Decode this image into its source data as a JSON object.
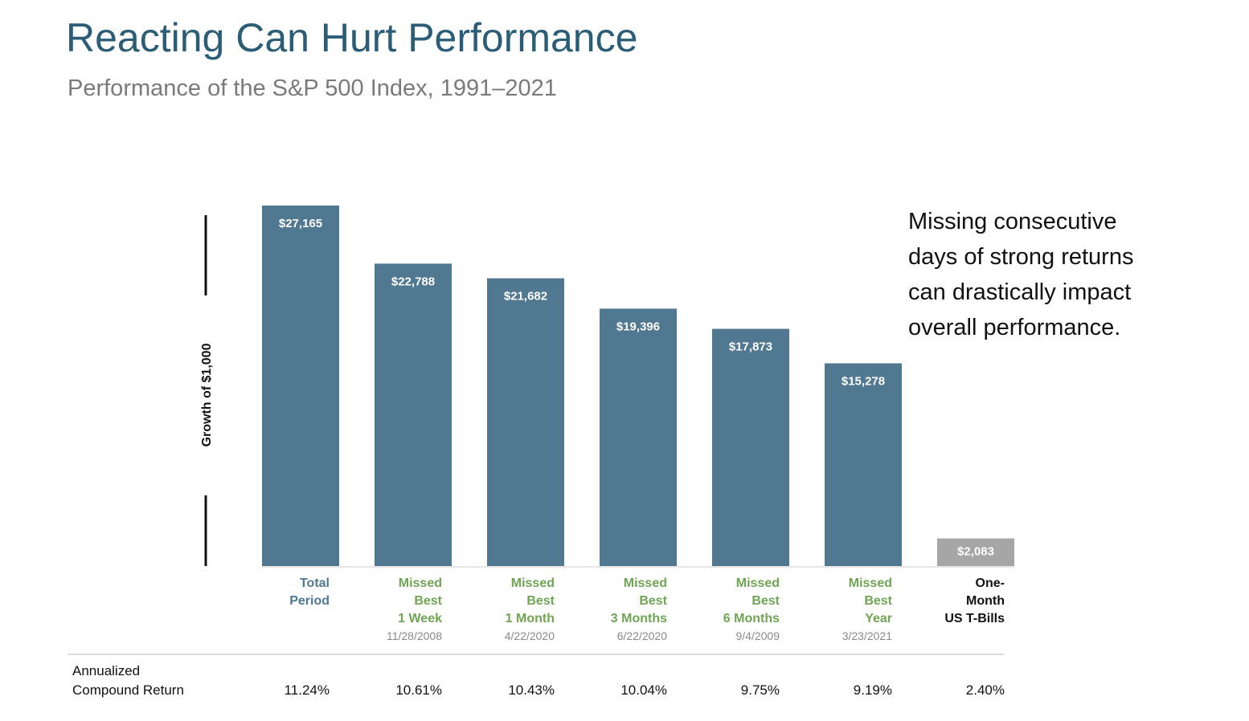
{
  "title": "Reacting Can Hurt Performance",
  "subtitle": "Performance of the S&P 500 Index, 1991–2021",
  "note_lines": [
    "Missing consecutive",
    "days of strong returns",
    "can drastically impact",
    "overall performance."
  ],
  "return_row_label": [
    "Annualized",
    "Compound Return"
  ],
  "colors": {
    "bar": "#507891",
    "tbill_bar": "#a6a6a6",
    "total_label": "#4f7893",
    "missed_label": "#6fa554",
    "tbill_label": "#111111",
    "title": "#2c5d77"
  },
  "chart_data": {
    "type": "bar",
    "ylabel": "Growth of $1,000",
    "ylim": [
      0,
      27165
    ],
    "grid": false,
    "categories": [
      {
        "lines": [
          "Total",
          "Period"
        ],
        "date": "",
        "group": "total"
      },
      {
        "lines": [
          "Missed",
          "Best",
          "1 Week"
        ],
        "date": "11/28/2008",
        "group": "missed"
      },
      {
        "lines": [
          "Missed",
          "Best",
          "1 Month"
        ],
        "date": "4/22/2020",
        "group": "missed"
      },
      {
        "lines": [
          "Missed",
          "Best",
          "3 Months"
        ],
        "date": "6/22/2020",
        "group": "missed"
      },
      {
        "lines": [
          "Missed",
          "Best",
          "6 Months"
        ],
        "date": "9/4/2009",
        "group": "missed"
      },
      {
        "lines": [
          "Missed",
          "Best",
          "Year"
        ],
        "date": "3/23/2021",
        "group": "missed"
      },
      {
        "lines": [
          "One-",
          "Month",
          "US T-Bills"
        ],
        "date": "",
        "group": "tbill"
      }
    ],
    "values": [
      27165,
      22788,
      21682,
      19396,
      17873,
      15278,
      2083
    ],
    "value_labels": [
      "$27,165",
      "$22,788",
      "$21,682",
      "$19,396",
      "$17,873",
      "$15,278",
      "$2,083"
    ],
    "annualized_returns": [
      "11.24%",
      "10.61%",
      "10.43%",
      "10.04%",
      "9.75%",
      "9.19%",
      "2.40%"
    ]
  }
}
